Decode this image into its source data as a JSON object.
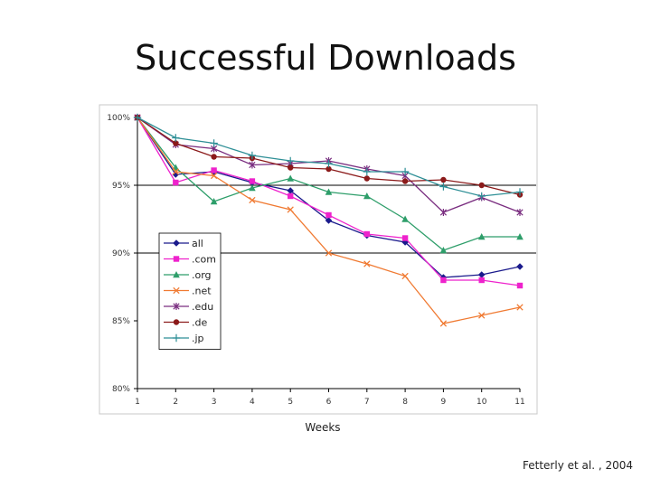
{
  "title": "Successful Downloads",
  "citation": "Fetterly et al. , 2004",
  "chart_data": {
    "type": "line",
    "title": "Successful Downloads",
    "xlabel": "Weeks",
    "ylabel": "",
    "x": [
      1,
      2,
      3,
      4,
      5,
      6,
      7,
      8,
      9,
      10,
      11
    ],
    "ylim": [
      80,
      100
    ],
    "yticks": [
      {
        "value": 100,
        "label": "100%"
      },
      {
        "value": 95,
        "label": "95%"
      },
      {
        "value": 90,
        "label": "90%"
      },
      {
        "value": 85,
        "label": "85%"
      },
      {
        "value": 80,
        "label": "80%"
      }
    ],
    "gridlines": [
      95,
      90
    ],
    "legend_position": "lower-left",
    "series": [
      {
        "name": "all",
        "color": "#1a1a8c",
        "marker": "diamond",
        "values": [
          100,
          95.8,
          96.0,
          95.2,
          94.6,
          92.4,
          91.3,
          90.8,
          88.2,
          88.4,
          89.0
        ]
      },
      {
        "name": ".com",
        "color": "#ee22cc",
        "marker": "square",
        "values": [
          100,
          95.2,
          96.1,
          95.3,
          94.2,
          92.8,
          91.4,
          91.1,
          88.0,
          88.0,
          87.6
        ]
      },
      {
        "name": ".org",
        "color": "#2e9e6a",
        "marker": "triangle",
        "values": [
          100,
          96.3,
          93.8,
          94.8,
          95.5,
          94.5,
          94.2,
          92.5,
          90.2,
          91.2,
          91.2
        ]
      },
      {
        "name": ".net",
        "color": "#f07a32",
        "marker": "x",
        "values": [
          100,
          96.0,
          95.7,
          93.9,
          93.2,
          90.0,
          89.2,
          88.3,
          84.8,
          85.4,
          86.0
        ]
      },
      {
        "name": ".edu",
        "color": "#7a2e80",
        "marker": "star",
        "values": [
          100,
          98.0,
          97.7,
          96.5,
          96.6,
          96.8,
          96.2,
          95.7,
          93.0,
          94.1,
          93.0
        ]
      },
      {
        "name": ".de",
        "color": "#8b1a1a",
        "marker": "circle",
        "values": [
          100,
          98.1,
          97.1,
          97.0,
          96.3,
          96.2,
          95.5,
          95.3,
          95.4,
          95.0,
          94.3
        ]
      },
      {
        "name": ".jp",
        "color": "#2e8f96",
        "marker": "plus",
        "values": [
          100,
          98.5,
          98.1,
          97.2,
          96.8,
          96.6,
          96.0,
          96.0,
          94.9,
          94.2,
          94.5
        ]
      }
    ]
  }
}
